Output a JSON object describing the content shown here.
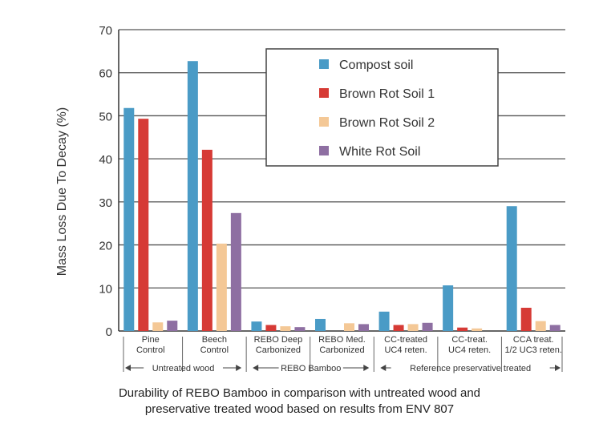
{
  "chart_data": {
    "type": "bar",
    "ylabel": "Mass Loss Due To Decay (%)",
    "ylim": [
      0,
      70
    ],
    "yticks": [
      0,
      10,
      20,
      30,
      40,
      50,
      60,
      70
    ],
    "grid": true,
    "legend_position": "top-right",
    "categories": [
      [
        "Pine",
        "Control"
      ],
      [
        "Beech",
        "Control"
      ],
      [
        "REBO Deep",
        "Carbonized"
      ],
      [
        "REBO Med.",
        "Carbonized"
      ],
      [
        "CC-treated",
        "UC4 reten."
      ],
      [
        "CC-treat.",
        "UC4 reten."
      ],
      [
        "CCA treat.",
        "1/2 UC3 reten."
      ]
    ],
    "groups": [
      {
        "label": "Untreated wood",
        "start": 0,
        "end": 1
      },
      {
        "label": "REBO Bamboo",
        "start": 2,
        "end": 3
      },
      {
        "label": "Reference preservative treated",
        "start": 4,
        "end": 6
      }
    ],
    "series": [
      {
        "name": "Compost soil",
        "color": "#4a9bc6",
        "values": [
          51.8,
          62.7,
          2.2,
          2.8,
          4.5,
          10.6,
          29.0
        ]
      },
      {
        "name": "Brown Rot Soil 1",
        "color": "#d63a35",
        "values": [
          49.3,
          42.1,
          1.4,
          0,
          1.4,
          0.8,
          5.4
        ]
      },
      {
        "name": "Brown Rot Soil 2",
        "color": "#f4c896",
        "values": [
          2.0,
          20.3,
          1.1,
          1.8,
          1.6,
          0.6,
          2.3
        ]
      },
      {
        "name": "White Rot Soil",
        "color": "#8e6fa2",
        "values": [
          2.4,
          27.4,
          0.9,
          1.6,
          1.9,
          0,
          1.4
        ]
      }
    ]
  },
  "caption": {
    "line1": "Durability of REBO Bamboo in comparison with untreated wood and",
    "line2": "preservative treated wood based on results from ENV 807"
  }
}
